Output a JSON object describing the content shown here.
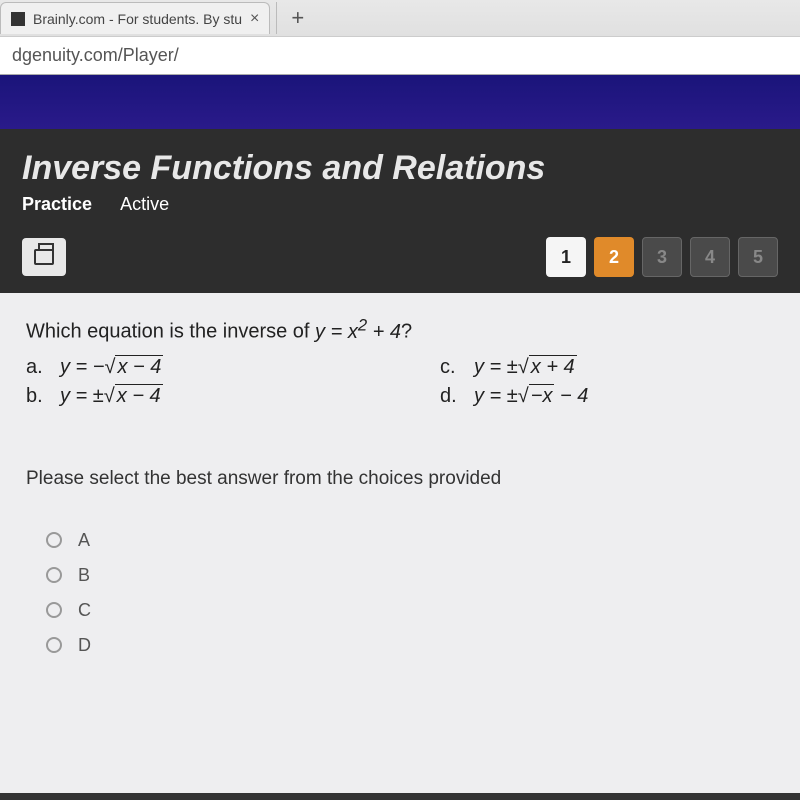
{
  "browser": {
    "tab_title": "Brainly.com - For students. By stu",
    "url": "dgenuity.com/Player/"
  },
  "course": {
    "title": "Inverse Functions and Relations",
    "mode": "Practice",
    "state": "Active"
  },
  "pager": {
    "items": [
      {
        "n": "1",
        "style": "page-white"
      },
      {
        "n": "2",
        "style": "page-orange"
      },
      {
        "n": "3",
        "style": "page-dark"
      },
      {
        "n": "4",
        "style": "page-dark"
      },
      {
        "n": "5",
        "style": "page-dark"
      }
    ]
  },
  "question": {
    "prefix": "Which equation is the inverse of ",
    "stem_html": "y = x² + 4?",
    "options": {
      "a": {
        "label": "a.",
        "lhs": "y = −",
        "rad": "x − 4",
        "suffix": ""
      },
      "c": {
        "label": "c.",
        "lhs": "y = ±",
        "rad": "x + 4",
        "suffix": ""
      },
      "b": {
        "label": "b.",
        "lhs": "y = ±",
        "rad": "x − 4",
        "suffix": ""
      },
      "d": {
        "label": "d.",
        "lhs": "y = ±",
        "rad": "−x",
        "suffix": " − 4"
      }
    },
    "instruction": "Please select the best answer from the choices provided",
    "answers": [
      "A",
      "B",
      "C",
      "D"
    ]
  },
  "colors": {
    "header_purple": "#1a147a",
    "dark_bg": "#2d2d2d",
    "orange": "#e08a2a",
    "content_bg": "#eeeef0"
  }
}
